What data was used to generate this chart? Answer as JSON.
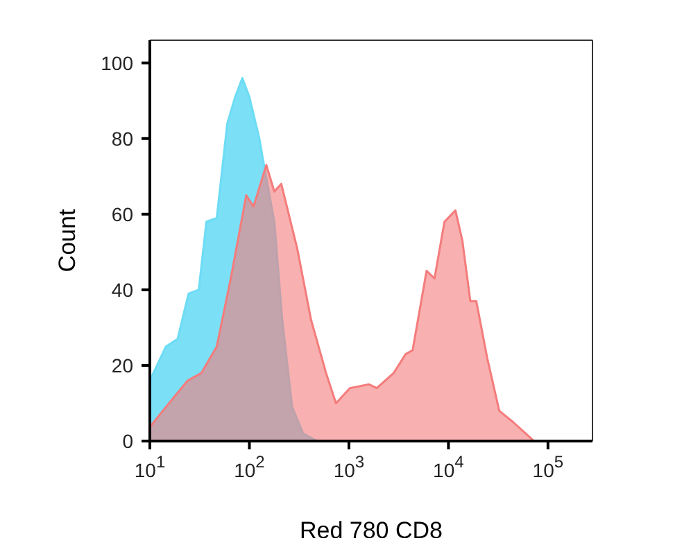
{
  "chart_data": {
    "type": "area",
    "xlabel": "Red 780 CD8",
    "ylabel": "Count",
    "log": "x",
    "xlim": [
      10,
      280000
    ],
    "ylim": [
      0,
      106
    ],
    "xticks": [
      {
        "value": 10,
        "label": "10$^{1}$"
      },
      {
        "value": 100,
        "label": "10$^{2}$"
      },
      {
        "value": 1000,
        "label": "10$^{3}$"
      },
      {
        "value": 10000,
        "label": "10$^{4}$"
      },
      {
        "value": 100000,
        "label": "10$^{5}$"
      }
    ],
    "yticks": [
      0,
      20,
      40,
      60,
      80,
      100
    ],
    "series": [
      {
        "color": "#6ddcf5",
        "x": [
          10,
          14.5,
          19,
          24.5,
          31,
          37,
          47,
          60,
          72,
          85,
          100,
          126,
          138,
          178,
          214,
          269,
          347,
          479,
          100000,
          280000
        ],
        "values": [
          16,
          25,
          27,
          39,
          40,
          58,
          59,
          84,
          91,
          96,
          91,
          80,
          74,
          58,
          32,
          9,
          2,
          0,
          0,
          0
        ]
      },
      {
        "color": "#f47c7c",
        "x": [
          10.2,
          14.5,
          24,
          33,
          47,
          65,
          93,
          110,
          148,
          178,
          209,
          302,
          417,
          589,
          741,
          1023,
          1585,
          1905,
          2818,
          3715,
          4365,
          6026,
          7244,
          9120,
          11750,
          13800,
          16600,
          19050,
          24500,
          32400,
          44700,
          72400
        ],
        "values": [
          4,
          9,
          16,
          18,
          25,
          43,
          65,
          62,
          73,
          66,
          68,
          51,
          32,
          18,
          10,
          14,
          15,
          14,
          18,
          23,
          24,
          45,
          43,
          58,
          61,
          53,
          37,
          37,
          22,
          8,
          5,
          0
        ]
      }
    ]
  }
}
